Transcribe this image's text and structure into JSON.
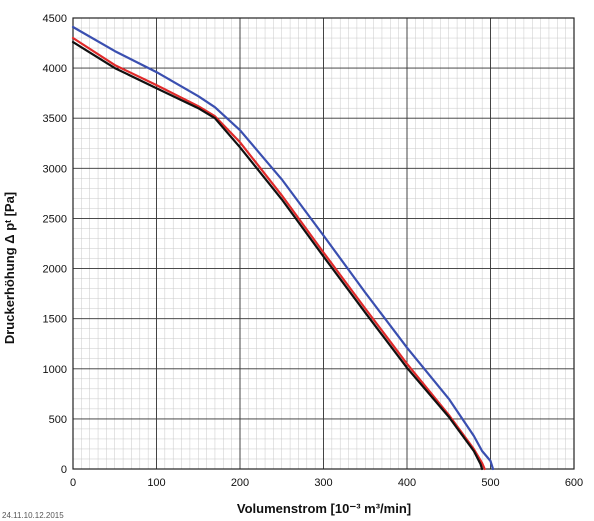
{
  "chart_data": {
    "type": "line",
    "xlabel": "Volumenstrom [10⁻³ m³/min]",
    "ylabel": "Druckerhöhung Δ pᵗ [Pa]",
    "xlim": [
      0,
      600
    ],
    "ylim": [
      0,
      4500
    ],
    "x_ticks": [
      0,
      100,
      200,
      300,
      400,
      500,
      600
    ],
    "y_ticks": [
      0,
      500,
      1000,
      1500,
      2000,
      2500,
      3000,
      3500,
      4000,
      4500
    ],
    "grid": true,
    "footer_text": "24.11.10.12.2015",
    "series": [
      {
        "color": "#3a4fb0",
        "x": [
          0,
          50,
          100,
          150,
          170,
          200,
          250,
          300,
          350,
          400,
          450,
          480,
          490,
          500,
          503
        ],
        "y": [
          4410,
          4170,
          3960,
          3720,
          3610,
          3380,
          2890,
          2330,
          1760,
          1210,
          700,
          330,
          180,
          80,
          0
        ]
      },
      {
        "color": "#e02a2a",
        "x": [
          0,
          50,
          100,
          150,
          170,
          200,
          250,
          300,
          350,
          400,
          450,
          480,
          490,
          493
        ],
        "y": [
          4300,
          4030,
          3830,
          3620,
          3520,
          3260,
          2730,
          2160,
          1600,
          1050,
          540,
          200,
          60,
          0
        ]
      },
      {
        "color": "#111111",
        "x": [
          0,
          50,
          100,
          150,
          170,
          200,
          250,
          300,
          350,
          400,
          450,
          480,
          488,
          490
        ],
        "y": [
          4260,
          4000,
          3800,
          3600,
          3500,
          3210,
          2690,
          2120,
          1560,
          1010,
          520,
          180,
          50,
          0
        ]
      }
    ]
  }
}
